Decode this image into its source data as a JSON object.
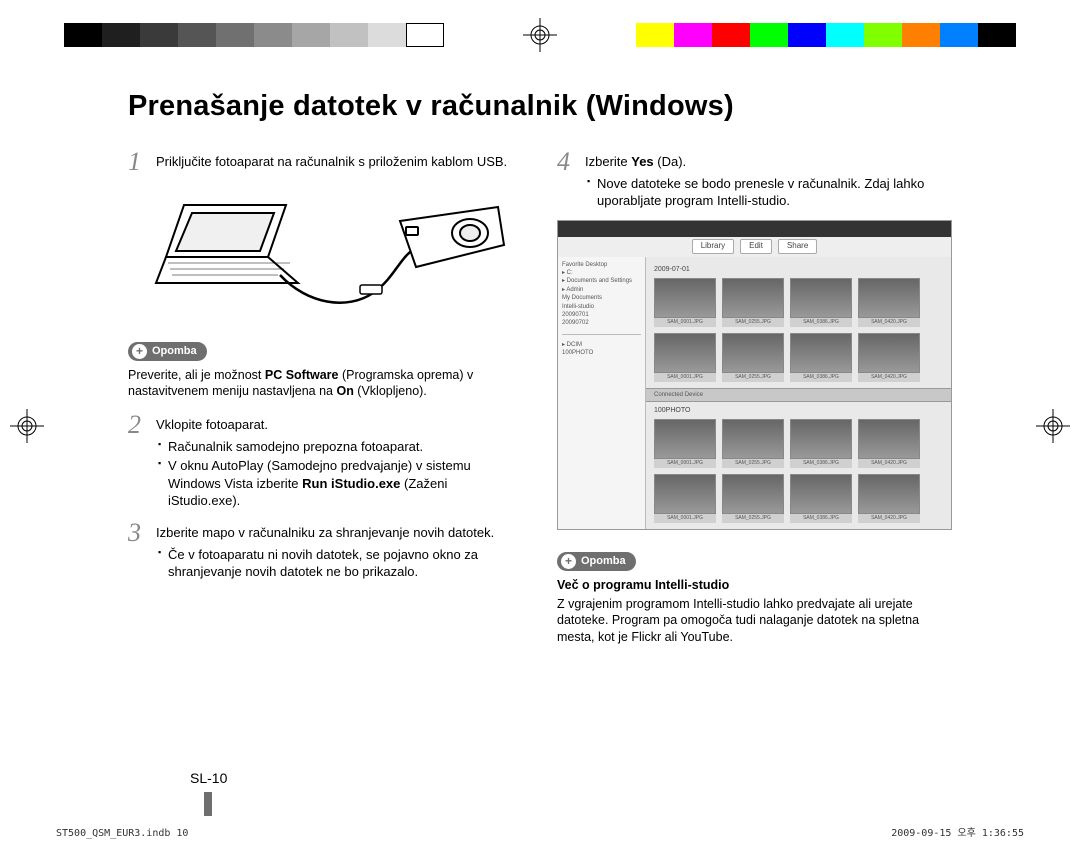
{
  "calibration": {
    "grays": [
      "#000000",
      "#1f1f1f",
      "#3a3a3a",
      "#555555",
      "#707070",
      "#8b8b8b",
      "#a6a6a6",
      "#c1c1c1",
      "#dcdcdc",
      "#ffffff"
    ],
    "colors": [
      "#ffff00",
      "#ff00ff",
      "#ff0000",
      "#00ff00",
      "#0000ff",
      "#00ffff",
      "#7fff00",
      "#ff7f00",
      "#007fff",
      "#000000"
    ]
  },
  "title": "Prenašanje datotek v računalnik (Windows)",
  "left": {
    "step1": {
      "num": "1",
      "text": "Priključite fotoaparat na računalnik s priloženim kablom USB."
    },
    "note1": {
      "badge": "Opomba",
      "text_parts": [
        "Preverite, ali je možnost ",
        "PC Software",
        " (Programska oprema) v nastavitvenem meniju nastavljena na ",
        "On",
        " (Vklopljeno)."
      ]
    },
    "step2": {
      "num": "2",
      "title": "Vklopite fotoaparat.",
      "bullets": [
        "Računalnik samodejno prepozna fotoaparat.",
        "V oknu AutoPlay (Samodejno predvajanje) v sistemu Windows Vista izberite Run iStudio.exe (Zaženi iStudio.exe)."
      ],
      "bullet2_bold": "Run iStudio.exe"
    },
    "step3": {
      "num": "3",
      "title": "Izberite mapo v računalniku za shranjevanje novih datotek.",
      "bullets": [
        "Če v fotoaparatu ni novih datotek, se pojavno okno za shranjevanje novih datotek ne bo prikazalo."
      ]
    }
  },
  "right": {
    "step4": {
      "num": "4",
      "title_parts": [
        "Izberite ",
        "Yes",
        " (Da)."
      ],
      "bullets": [
        "Nove datoteke se bodo prenesle v računalnik. Zdaj lahko uporabljate program Intelli-studio."
      ]
    },
    "screenshot": {
      "tabs": [
        "Library",
        "Edit",
        "Share"
      ],
      "tree": [
        "Favorite   Desktop",
        "▸ C:",
        "  ▸ Documents and Settings",
        "    ▸ Admin",
        "      My Documents",
        "      Intelli-studio",
        "        20090701",
        "        20090702"
      ],
      "section1": "2009-07-01",
      "thumbs1": [
        "SAM_0001.JPG",
        "SAM_0255.JPG",
        "SAM_0386.JPG",
        "SAM_0420.JPG"
      ],
      "divider": "Connected Device",
      "section2": "100PHOTO",
      "thumbs2": [
        "SAM_0001.JPG",
        "SAM_0255.JPG",
        "SAM_0386.JPG",
        "SAM_0420.JPG"
      ],
      "tree2": [
        "▸ DCIM",
        "  100PHOTO"
      ]
    },
    "note2": {
      "badge": "Opomba",
      "subtitle": "Več o programu Intelli-studio",
      "text": "Z vgrajenim programom Intelli-studio lahko predvajate ali urejate datoteke. Program pa omogoča tudi nalaganje datotek na spletna mesta, kot je Flickr ali YouTube."
    }
  },
  "page_num": "SL-10",
  "footer_left": "ST500_QSM_EUR3.indb   10",
  "footer_right": "2009-09-15   오후 1:36:55"
}
